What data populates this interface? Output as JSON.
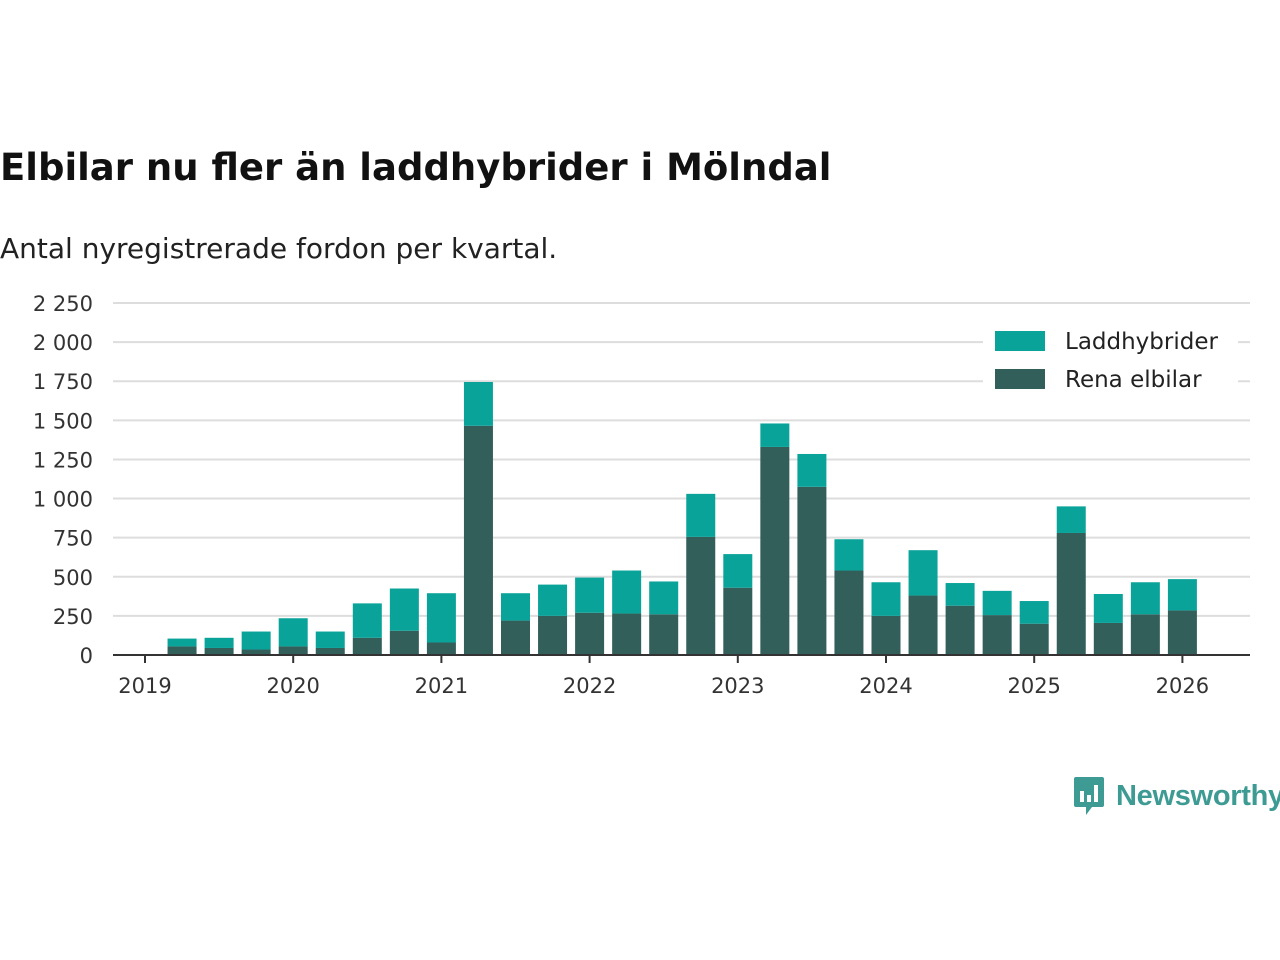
{
  "title": "Elbilar nu fler än laddhybrider i Mölndal",
  "subtitle": "Antal nyregistrerade fordon per kvartal.",
  "brand": {
    "name": "Newsworthy",
    "icon": "newsworthy-logo-icon",
    "color": "#3d9b93"
  },
  "colors": {
    "laddhybrider": "#0aa39a",
    "rena_elbilar": "#335f5a",
    "grid": "#dddddd",
    "axis": "#333333"
  },
  "chart_data": {
    "type": "bar",
    "stacked": true,
    "title": "Elbilar nu fler än laddhybrider i Mölndal",
    "subtitle": "Antal nyregistrerade fordon per kvartal.",
    "xlabel": "",
    "ylabel": "",
    "ylim": [
      0,
      2250
    ],
    "yticks": [
      0,
      250,
      500,
      750,
      1000,
      1250,
      1500,
      1750,
      2000,
      2250
    ],
    "ytick_labels": [
      "0",
      "250",
      "500",
      "750",
      "1 000",
      "1 250",
      "1 500",
      "1 750",
      "2 000",
      "2 250"
    ],
    "xticks": [
      "2019",
      "2020",
      "2021",
      "2022",
      "2023",
      "2024",
      "2025",
      "2026"
    ],
    "grid": true,
    "legend_position": "top-right",
    "categories": [
      "2019 Q2",
      "2019 Q3",
      "2019 Q4",
      "2020 Q1",
      "2020 Q2",
      "2020 Q3",
      "2020 Q4",
      "2021 Q1",
      "2021 Q2",
      "2021 Q3",
      "2021 Q4",
      "2022 Q1",
      "2022 Q2",
      "2022 Q3",
      "2022 Q4",
      "2023 Q1",
      "2023 Q2",
      "2023 Q3",
      "2023 Q4",
      "2024 Q1",
      "2024 Q2",
      "2024 Q3",
      "2024 Q4",
      "2025 Q1",
      "2025 Q2",
      "2025 Q3",
      "2025 Q4",
      "2026 Q1"
    ],
    "series": [
      {
        "name": "Rena elbilar",
        "key": "rena_elbilar",
        "values": [
          55,
          45,
          35,
          55,
          45,
          110,
          155,
          80,
          1465,
          220,
          250,
          270,
          265,
          260,
          755,
          430,
          1330,
          1075,
          540,
          250,
          380,
          315,
          255,
          200,
          780,
          205,
          260,
          285
        ]
      },
      {
        "name": "Laddhybrider",
        "key": "laddhybrider",
        "values": [
          50,
          65,
          115,
          180,
          105,
          220,
          270,
          315,
          280,
          175,
          200,
          225,
          275,
          210,
          275,
          215,
          150,
          210,
          200,
          215,
          290,
          145,
          155,
          145,
          170,
          185,
          205,
          200
        ]
      }
    ],
    "legend": [
      "Laddhybrider",
      "Rena elbilar"
    ]
  }
}
